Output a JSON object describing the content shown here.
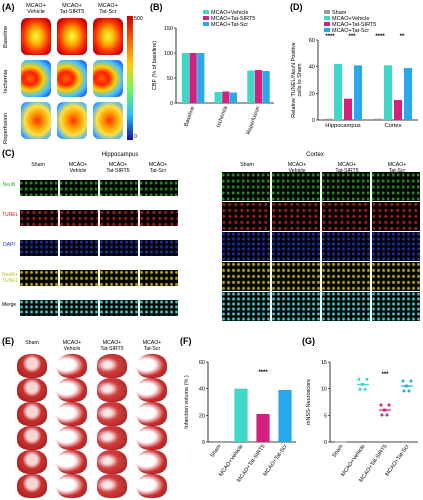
{
  "panels": {
    "A": {
      "letter": "(A)",
      "cols": [
        "MCAO+\nVehicle",
        "MCAO+\nTat-SIRT5",
        "MCAO+\nTat-Scr"
      ],
      "rows": [
        "Baseline",
        "Ischemia",
        "Reperfusion"
      ],
      "scale_max": "500",
      "scale_min": "0"
    },
    "B": {
      "letter": "(B)"
    },
    "C": {
      "letter": "(C)",
      "regions": [
        "Hippocampus",
        "Cortex"
      ],
      "cols": [
        "Sham",
        "MCAO+\nVehicle",
        "MCAO+\nTat-SIRT5",
        "MCAO+\nTat-Scr"
      ],
      "rows": [
        "NeuN",
        "TUNEL",
        "DAPI",
        "NeuN+\nTUNEL",
        "Merge"
      ]
    },
    "D": {
      "letter": "(D)"
    },
    "E": {
      "letter": "(E)",
      "cols": [
        "Sham",
        "MCAO+\nVehicle",
        "MCAO+\nTat-SIRT5",
        "MCAO+\nTat-Scr"
      ]
    },
    "F": {
      "letter": "(F)"
    },
    "G": {
      "letter": "(G)"
    }
  },
  "chart_data": [
    {
      "id": "B",
      "type": "bar",
      "ylabel": "CBF (% of baseline)",
      "categories": [
        "Baseline",
        "Ischemia",
        "Reperfusion"
      ],
      "ylim": [
        0,
        150
      ],
      "yticks": [
        0,
        50,
        100,
        150
      ],
      "legend": [
        "MCAO+Vehicle",
        "MCAO+Tat-SIRT5",
        "MCAO+Tat-Scr"
      ],
      "colors": [
        "#3fd7c8",
        "#d4207f",
        "#29a9e8"
      ],
      "series": [
        {
          "name": "MCAO+Vehicle",
          "values": [
            100,
            22,
            65
          ]
        },
        {
          "name": "MCAO+Tat-SIRT5",
          "values": [
            100,
            23,
            66
          ]
        },
        {
          "name": "MCAO+Tat-Scr",
          "values": [
            100,
            21,
            64
          ]
        }
      ]
    },
    {
      "id": "D",
      "type": "bar",
      "ylabel": "Relative TUNEL/NeuN Positive\ncells to Sham",
      "categories": [
        "Hippocampus",
        "Cortex"
      ],
      "ylim": [
        0,
        60
      ],
      "yticks": [
        0,
        20,
        40,
        60
      ],
      "legend": [
        "Sham",
        "MCAO+Vehicle",
        "MCAO+Tat-SIRT5",
        "MCAO+Tat-Scr"
      ],
      "colors": [
        "#9a9a9a",
        "#3fd7c8",
        "#d4207f",
        "#29a9e8"
      ],
      "series": [
        {
          "name": "Sham",
          "values": [
            1,
            1
          ]
        },
        {
          "name": "MCAO+Vehicle",
          "values": [
            42,
            41
          ]
        },
        {
          "name": "MCAO+Tat-SIRT5",
          "values": [
            16,
            15
          ]
        },
        {
          "name": "MCAO+Tat-Scr",
          "values": [
            41,
            39
          ]
        }
      ],
      "significance": [
        {
          "label": "****",
          "group": "Hippocampus",
          "pair": "Sham-Vehicle"
        },
        {
          "label": "***",
          "group": "Hippocampus",
          "pair": "SIRT5-Scr"
        },
        {
          "label": "****",
          "group": "Cortex",
          "pair": "Sham-Vehicle"
        },
        {
          "label": "**",
          "group": "Cortex",
          "pair": "SIRT5-Scr"
        }
      ]
    },
    {
      "id": "F",
      "type": "bar",
      "ylabel": "Infarction volume (% )",
      "categories": [
        "Sham",
        "MCAO+Vehicle",
        "MCAO+Tat-SIRT5",
        "MCAO+Tat-Scr"
      ],
      "ylim": [
        0,
        60
      ],
      "yticks": [
        0,
        20,
        40,
        60
      ],
      "colors": [
        "#9a9a9a",
        "#3fd7c8",
        "#d4207f",
        "#29a9e8"
      ],
      "values": [
        0,
        40,
        21,
        39
      ],
      "significance": [
        {
          "label": "****",
          "pair": "MCAO+Tat-SIRT5 vs MCAO+Tat-Scr"
        }
      ]
    },
    {
      "id": "G",
      "type": "scatter",
      "ylabel": "mNSS-Neuroscore",
      "categories": [
        "Sham",
        "MCAO+Vehicle",
        "MCAO+Tat-SIRT5",
        "MCAO+Tat-Scr"
      ],
      "ylim": [
        0,
        15
      ],
      "yticks": [
        0,
        5,
        10,
        15
      ],
      "colors": [
        "#9a9a9a",
        "#3fd7c8",
        "#d4207f",
        "#29a9e8"
      ],
      "means": [
        0,
        10.8,
        6,
        10.5
      ],
      "significance": [
        {
          "label": "***",
          "pair": "MCAO+Tat-SIRT5 vs MCAO+Tat-Scr"
        }
      ]
    }
  ]
}
